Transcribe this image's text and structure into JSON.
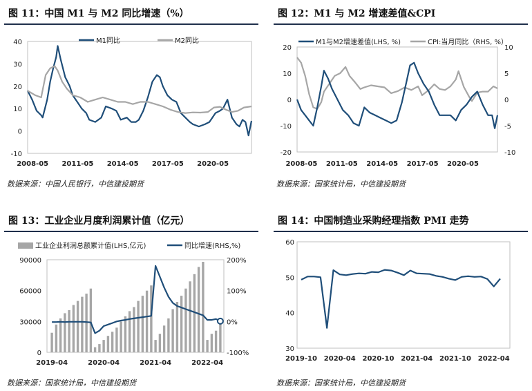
{
  "panels": [
    {
      "title": "图 11：中国 M1 与 M2 同比增速（%）",
      "source": "数据来源：中国人民银行，中信建投期货"
    },
    {
      "title": "图 12：M1 与 M2 增速差值&CPI",
      "source": "数据来源：国家统计局，中信建投期货"
    },
    {
      "title": "图 13：工业企业月度利润累计值（亿元）",
      "source": "数据来源：国家统计局，中信建投期货"
    },
    {
      "title": "图 14：中国制造业采购经理指数 PMI 走势",
      "source": "数据来源：国家统计局，中信建投期货"
    }
  ],
  "colors": {
    "dark_blue": "#1f4e79",
    "gray": "#a6a6a6",
    "title_bar": "#1f2f4b"
  },
  "chart_data": [
    {
      "type": "line",
      "title": "图 11：中国 M1 与 M2 同比增速（%）",
      "ylim": [
        -10,
        40
      ],
      "yticks": [
        "40",
        "30",
        "20",
        "10",
        "0",
        "-10"
      ],
      "xticks": [
        "2008-05",
        "2011-05",
        "2014-05",
        "2017-05",
        "2020-05"
      ],
      "xrange": [
        2008.0,
        2022.9
      ],
      "xtick_pos": [
        2008.33,
        2011.33,
        2014.33,
        2017.33,
        2020.33
      ],
      "legend": [
        "M1同比",
        "M2同比"
      ],
      "series": [
        {
          "name": "M1同比",
          "x": [
            2008.0,
            2008.3,
            2008.6,
            2008.9,
            2009.0,
            2009.3,
            2009.5,
            2009.7,
            2009.9,
            2010.0,
            2010.2,
            2010.5,
            2010.8,
            2011.0,
            2011.3,
            2011.6,
            2011.9,
            2012.1,
            2012.5,
            2012.9,
            2013.2,
            2013.6,
            2013.9,
            2014.2,
            2014.6,
            2014.9,
            2015.2,
            2015.4,
            2015.7,
            2016.0,
            2016.3,
            2016.6,
            2016.8,
            2017.0,
            2017.3,
            2017.6,
            2017.9,
            2018.2,
            2018.5,
            2018.8,
            2019.0,
            2019.4,
            2019.8,
            2020.1,
            2020.5,
            2020.8,
            2021.0,
            2021.3,
            2021.6,
            2021.9,
            2022.1,
            2022.3,
            2022.5,
            2022.7,
            2022.9
          ],
          "values": [
            18,
            14,
            9,
            7,
            6,
            14,
            22,
            28,
            33,
            38,
            32,
            24,
            20,
            16,
            13,
            10,
            8,
            5,
            4,
            6,
            11,
            10,
            9,
            5,
            6,
            4,
            4,
            5,
            9,
            15,
            22,
            25,
            24,
            20,
            16,
            14,
            13,
            8,
            6,
            4,
            3,
            2,
            3,
            4,
            8,
            9,
            10,
            14,
            6,
            3,
            2,
            5,
            4,
            -2,
            4.5
          ]
        },
        {
          "name": "M2同比",
          "x": [
            2008.0,
            2008.5,
            2008.9,
            2009.2,
            2009.5,
            2009.8,
            2010.0,
            2010.3,
            2010.6,
            2011.0,
            2011.5,
            2012.0,
            2012.5,
            2013.0,
            2013.5,
            2014.0,
            2014.5,
            2015.0,
            2015.5,
            2016.0,
            2016.5,
            2017.0,
            2017.5,
            2018.0,
            2018.5,
            2019.0,
            2019.5,
            2020.0,
            2020.4,
            2020.8,
            2021.2,
            2021.6,
            2022.0,
            2022.4,
            2022.9
          ],
          "values": [
            18,
            16,
            15,
            25,
            28,
            29,
            27,
            22,
            19,
            16,
            15,
            13,
            14,
            15,
            14,
            13,
            13,
            12,
            13,
            13,
            12,
            11,
            9.5,
            8.5,
            8,
            8.3,
            8.2,
            8.5,
            10.5,
            10.8,
            9.5,
            8.5,
            9,
            10.5,
            11
          ]
        }
      ]
    },
    {
      "type": "line",
      "title": "图 12：M1 与 M2 增速差值&CPI",
      "ylim": [
        -20,
        20
      ],
      "yticks": [
        "20",
        "10",
        "0",
        "-10",
        "-20"
      ],
      "y2lim": [
        -10,
        10
      ],
      "y2ticks": [
        "10",
        "5",
        "0",
        "-5",
        "-10"
      ],
      "xticks": [
        "2008-05",
        "2011-05",
        "2014-05",
        "2017-05",
        "2020-05"
      ],
      "xrange": [
        2008.0,
        2022.9
      ],
      "xtick_pos": [
        2008.33,
        2011.33,
        2014.33,
        2017.33,
        2020.33
      ],
      "legend": [
        "M1与M2增速差值(LHS, %)",
        "CPI:当月同比（RHS, %）"
      ],
      "series": [
        {
          "name": "M1与M2增速差值(LHS, %)",
          "axis": "left",
          "x": [
            2008.0,
            2008.3,
            2008.6,
            2008.9,
            2009.2,
            2009.5,
            2009.8,
            2010.0,
            2010.3,
            2010.6,
            2011.0,
            2011.4,
            2011.8,
            2012.2,
            2012.6,
            2013.0,
            2013.4,
            2013.8,
            2014.2,
            2014.6,
            2015.0,
            2015.4,
            2015.8,
            2016.1,
            2016.4,
            2016.7,
            2017.0,
            2017.4,
            2017.8,
            2018.2,
            2018.6,
            2019.0,
            2019.4,
            2019.8,
            2020.2,
            2020.6,
            2021.0,
            2021.4,
            2021.8,
            2022.2,
            2022.5,
            2022.7,
            2022.9
          ],
          "values": [
            0,
            -4,
            -6,
            -8,
            -10,
            -3,
            5,
            11,
            8,
            4,
            0,
            -4,
            -6,
            -9,
            -10,
            -3,
            -5,
            -6,
            -7,
            -8,
            -9,
            -8,
            -1,
            6,
            13,
            14,
            10,
            6,
            3,
            -2,
            -6,
            -6,
            -6,
            -8,
            -4,
            -2,
            1,
            3,
            -2,
            -6,
            -6,
            -11,
            -6
          ]
        },
        {
          "name": "CPI:当月同比（RHS, %）",
          "axis": "right",
          "x": [
            2008.0,
            2008.3,
            2008.6,
            2008.9,
            2009.2,
            2009.5,
            2009.8,
            2010.0,
            2010.4,
            2010.8,
            2011.2,
            2011.6,
            2011.9,
            2012.3,
            2012.7,
            2013.0,
            2013.5,
            2014.0,
            2014.5,
            2015.0,
            2015.5,
            2016.0,
            2016.5,
            2017.0,
            2017.3,
            2017.8,
            2018.2,
            2018.6,
            2019.0,
            2019.4,
            2019.8,
            2020.0,
            2020.4,
            2020.8,
            2021.0,
            2021.4,
            2021.8,
            2022.2,
            2022.6,
            2022.9
          ],
          "values": [
            8,
            7,
            4.5,
            1,
            -1.5,
            -1.8,
            -0.5,
            1.5,
            3,
            4.5,
            5,
            6.2,
            4.5,
            3.3,
            2,
            2.3,
            2.7,
            2.5,
            2.3,
            1.2,
            1.6,
            2.3,
            1.8,
            2.5,
            0.8,
            1.8,
            2.9,
            2,
            1.8,
            2.5,
            3.8,
            5.4,
            2.4,
            0.5,
            -0.3,
            1.3,
            1.5,
            1.5,
            2.5,
            2.1
          ]
        }
      ]
    },
    {
      "type": "bar",
      "title": "图 13：工业企业月度利润累计值（亿元）",
      "ylim": [
        0,
        90000
      ],
      "yticks": [
        "90000",
        "60000",
        "30000",
        "0"
      ],
      "y2lim": [
        -100,
        200
      ],
      "y2ticks": [
        "200%",
        "100%",
        "0%",
        "-100%"
      ],
      "xticks": [
        "2019-04",
        "2020-04",
        "2021-04",
        "2022-04"
      ],
      "legend": [
        "工业企业利润总额累计值(LHS,亿元)",
        "同比增速(RHS,%)"
      ],
      "categories_count": 40,
      "series": [
        {
          "name": "工业企业利润总额累计值(LHS,亿元)",
          "axis": "left",
          "values": [
            19000,
            27000,
            33000,
            38000,
            41000,
            46000,
            50000,
            54000,
            57000,
            62000,
            5000,
            8000,
            12000,
            16000,
            20000,
            24000,
            30000,
            35000,
            40000,
            44000,
            50000,
            55000,
            60000,
            65000,
            12000,
            18000,
            26000,
            33000,
            42000,
            49000,
            55000,
            62000,
            69000,
            76000,
            83000,
            88000,
            12000,
            18000,
            21000,
            30000
          ]
        },
        {
          "name": "同比增速(RHS,%)",
          "axis": "right",
          "values": [
            -2,
            -2,
            -1,
            -2,
            -1,
            -1,
            -1,
            -1,
            -2,
            -3,
            -38,
            -30,
            -15,
            -10,
            -5,
            0,
            3,
            5,
            8,
            10,
            12,
            14,
            16,
            18,
            180,
            145,
            110,
            80,
            60,
            50,
            45,
            40,
            35,
            30,
            25,
            20,
            5,
            5,
            8,
            1
          ]
        }
      ]
    },
    {
      "type": "line",
      "title": "图 14：中国制造业采购经理指数 PMI 走势",
      "ylim": [
        30,
        60
      ],
      "yticks": [
        "60",
        "50",
        "40",
        "30"
      ],
      "xticks": [
        "2019-10",
        "2020-04",
        "2020-10",
        "2021-04",
        "2021-10",
        "2022-04"
      ],
      "series": [
        {
          "name": "PMI",
          "values": [
            49.3,
            50.2,
            50.2,
            50.0,
            35.7,
            52.0,
            50.8,
            50.6,
            50.9,
            51.1,
            51.0,
            51.5,
            51.4,
            52.1,
            51.9,
            51.3,
            50.6,
            51.9,
            51.1,
            51.0,
            50.9,
            50.4,
            50.1,
            49.6,
            49.2,
            50.1,
            50.3,
            50.1,
            50.2,
            49.5,
            47.4,
            49.6
          ]
        }
      ]
    }
  ]
}
